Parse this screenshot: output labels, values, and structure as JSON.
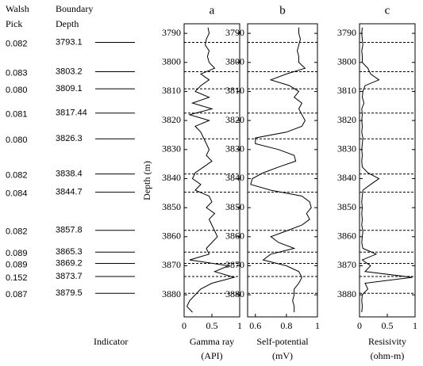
{
  "chart_data": [
    {
      "type": "line",
      "title": "a",
      "xlabel": "Gamma ray",
      "xunit": "(API)",
      "ylabel": "Depth (m)",
      "xlim": [
        0,
        1
      ],
      "xticks": [
        0,
        0.5,
        1
      ],
      "ylim": [
        3786.7,
        3887.6
      ],
      "yticks": [
        3790,
        3800,
        3810,
        3820,
        3830,
        3840,
        3850,
        3860,
        3870,
        3880
      ],
      "color": "#000000",
      "depth": [
        3788,
        3790,
        3792,
        3794,
        3796,
        3798,
        3800,
        3802,
        3804,
        3806,
        3808,
        3810,
        3812,
        3814,
        3816,
        3818,
        3820,
        3822,
        3824,
        3826,
        3828,
        3830,
        3832,
        3834,
        3836,
        3838,
        3840,
        3842,
        3844,
        3846,
        3848,
        3850,
        3852,
        3854,
        3856,
        3858,
        3860,
        3862,
        3864,
        3866,
        3868,
        3870,
        3872,
        3874,
        3876,
        3878,
        3880,
        3882,
        3884,
        3886
      ],
      "values": [
        0.43,
        0.45,
        0.4,
        0.38,
        0.45,
        0.42,
        0.45,
        0.55,
        0.3,
        0.45,
        0.3,
        0.2,
        0.45,
        0.15,
        0.5,
        0.1,
        0.45,
        0.2,
        0.3,
        0.35,
        0.4,
        0.45,
        0.4,
        0.5,
        0.35,
        0.2,
        0.15,
        0.3,
        0.2,
        0.45,
        0.5,
        0.4,
        0.55,
        0.45,
        0.5,
        0.55,
        0.6,
        0.5,
        0.4,
        0.45,
        0.1,
        0.8,
        0.55,
        0.9,
        0.5,
        0.3,
        0.2,
        0.1,
        0.05,
        0.15
      ]
    },
    {
      "type": "line",
      "title": "b",
      "xlabel": "Self-potential",
      "xunit": "(mV)",
      "xlim": [
        0.55,
        1
      ],
      "xticks": [
        0.6,
        0.8,
        1
      ],
      "ylim": [
        3786.7,
        3887.6
      ],
      "yticks": [
        3790,
        3800,
        3810,
        3820,
        3830,
        3840,
        3850,
        3860,
        3870,
        3880
      ],
      "color": "#000000",
      "depth": [
        3788,
        3790,
        3792,
        3794,
        3796,
        3798,
        3800,
        3802,
        3804,
        3806,
        3808,
        3810,
        3812,
        3814,
        3816,
        3818,
        3820,
        3822,
        3824,
        3826,
        3828,
        3830,
        3832,
        3834,
        3836,
        3838,
        3840,
        3842,
        3844,
        3846,
        3848,
        3850,
        3852,
        3854,
        3856,
        3858,
        3860,
        3862,
        3864,
        3866,
        3868,
        3870,
        3872,
        3874,
        3876,
        3878,
        3880,
        3882,
        3884,
        3886
      ],
      "values": [
        0.88,
        0.88,
        0.89,
        0.88,
        0.87,
        0.88,
        0.88,
        0.92,
        0.8,
        0.7,
        0.82,
        0.88,
        0.85,
        0.9,
        0.88,
        0.9,
        0.92,
        0.9,
        0.8,
        0.6,
        0.6,
        0.75,
        0.85,
        0.86,
        0.75,
        0.65,
        0.58,
        0.57,
        0.7,
        0.9,
        0.95,
        0.96,
        0.93,
        0.95,
        0.9,
        0.8,
        0.7,
        0.75,
        0.85,
        0.7,
        0.65,
        0.8,
        0.88,
        0.9,
        0.88,
        0.85,
        0.85,
        0.84,
        0.85,
        0.85
      ]
    },
    {
      "type": "line",
      "title": "c",
      "xlabel": "Resisivity",
      "xunit": "(ohm-m)",
      "xlim": [
        0,
        1
      ],
      "xticks": [
        0,
        0.5,
        1
      ],
      "ylim": [
        3786.7,
        3887.6
      ],
      "yticks": [
        3790,
        3800,
        3810,
        3820,
        3830,
        3840,
        3850,
        3860,
        3870,
        3880
      ],
      "color": "#000000",
      "depth": [
        3788,
        3790,
        3792,
        3794,
        3796,
        3798,
        3800,
        3802,
        3804,
        3806,
        3808,
        3810,
        3812,
        3814,
        3816,
        3818,
        3820,
        3822,
        3824,
        3826,
        3828,
        3830,
        3832,
        3834,
        3836,
        3838,
        3840,
        3842,
        3844,
        3846,
        3848,
        3850,
        3852,
        3854,
        3856,
        3858,
        3860,
        3862,
        3864,
        3866,
        3868,
        3870,
        3872,
        3874,
        3876,
        3878,
        3880,
        3882,
        3884,
        3886
      ],
      "values": [
        0.05,
        0.04,
        0.05,
        0.06,
        0.04,
        0.05,
        0.05,
        0.15,
        0.2,
        0.35,
        0.1,
        0.06,
        0.05,
        0.08,
        0.04,
        0.05,
        0.04,
        0.05,
        0.04,
        0.06,
        0.05,
        0.04,
        0.05,
        0.04,
        0.05,
        0.15,
        0.35,
        0.2,
        0.06,
        0.05,
        0.04,
        0.05,
        0.04,
        0.05,
        0.04,
        0.06,
        0.05,
        0.04,
        0.06,
        0.3,
        0.05,
        0.2,
        0.1,
        0.95,
        0.1,
        0.15,
        0.05,
        0.04,
        0.05,
        0.04
      ]
    }
  ],
  "boundaries": {
    "pick_header": [
      "Walsh",
      "Pick"
    ],
    "depth_header": [
      "Boundary",
      "Depth"
    ],
    "footer": "Indicator",
    "picks": [
      0.082,
      0.083,
      0.08,
      0.081,
      0.08,
      0.082,
      0.084,
      0.082,
      0.089,
      0.089,
      0.152,
      0.087
    ],
    "pick_labels": [
      "0.082",
      "0.083",
      "0.080",
      "0.081",
      "0.080",
      "0.082",
      "0.084",
      "0.082",
      "0.089",
      "0.089",
      "0.152",
      "0.087"
    ],
    "depths": [
      3793.1,
      3803.2,
      3809.1,
      3817.44,
      3826.3,
      3838.4,
      3844.7,
      3857.8,
      3865.3,
      3869.2,
      3873.7,
      3879.5
    ]
  }
}
